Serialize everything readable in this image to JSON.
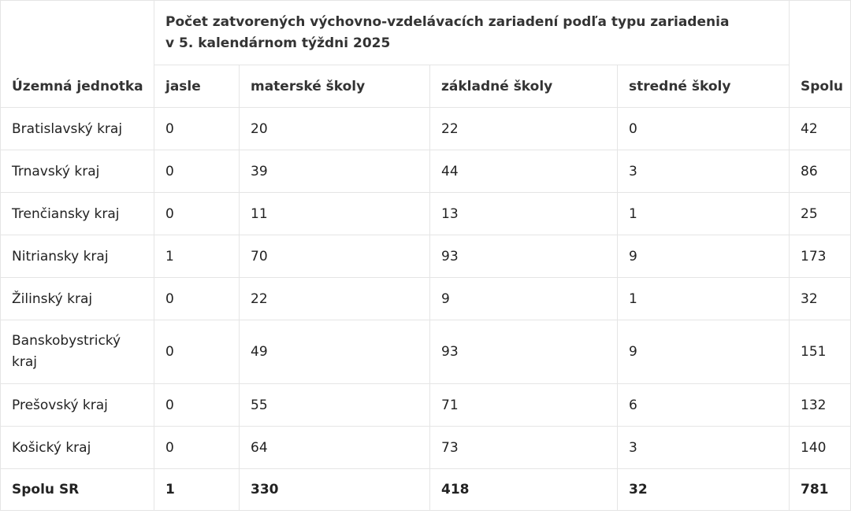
{
  "table": {
    "row_header": "Územná jednotka",
    "group_header": "Počet zatvorených výchovno-vzdelávacích zariadení podľa typu zariadenia v 5. kalendárnom týždni 2025",
    "columns": [
      "jasle",
      "materské školy",
      "základné školy",
      "stredné školy"
    ],
    "total_header": "Spolu",
    "rows": [
      {
        "name": "Bratislavský kraj",
        "values": [
          "0",
          "20",
          "22",
          "0"
        ],
        "total": "42"
      },
      {
        "name": "Trnavský kraj",
        "values": [
          "0",
          "39",
          "44",
          "3"
        ],
        "total": "86"
      },
      {
        "name": "Trenčiansky kraj",
        "values": [
          "0",
          "11",
          "13",
          "1"
        ],
        "total": "25"
      },
      {
        "name": "Nitriansky kraj",
        "values": [
          "1",
          "70",
          "93",
          "9"
        ],
        "total": "173"
      },
      {
        "name": "Žilinský kraj",
        "values": [
          "0",
          "22",
          "9",
          "1"
        ],
        "total": "32"
      },
      {
        "name": "Banskobystrický kraj",
        "values": [
          "0",
          "49",
          "93",
          "9"
        ],
        "total": "151"
      },
      {
        "name": "Prešovský kraj",
        "values": [
          "0",
          "55",
          "71",
          "6"
        ],
        "total": "132"
      },
      {
        "name": "Košický kraj",
        "values": [
          "0",
          "64",
          "73",
          "3"
        ],
        "total": "140"
      }
    ],
    "total_row": {
      "name": "Spolu SR",
      "values": [
        "1",
        "330",
        "418",
        "32"
      ],
      "total": "781"
    }
  }
}
